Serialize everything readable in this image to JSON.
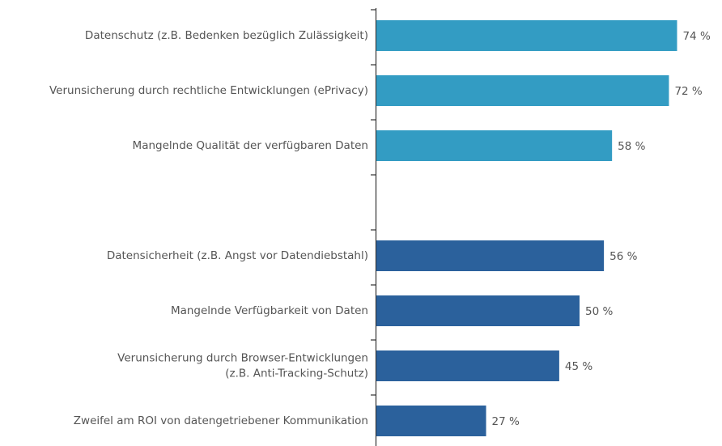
{
  "chart_data": {
    "type": "hbar",
    "categories": [
      "Datenschutz (z.B. Bedenken bezüglich Zulässigkeit)",
      "Verunsicherung durch rechtliche Entwicklungen (ePrivacy)",
      "Mangelnde Qualität der verfügbaren Daten",
      null,
      "Datensicherheit (z.B. Angst vor Datendiebstahl)",
      "Mangelnde Verfügbarkeit von Daten",
      [
        "Verunsicherung durch Browser-Entwicklungen",
        "(z.B. Anti-Tracking-Schutz)"
      ],
      "Zweifel am ROI von datengetriebener Kommunikation"
    ],
    "values": [
      74,
      72,
      58,
      null,
      56,
      50,
      45,
      27
    ],
    "value_labels": [
      "74 %",
      "72 %",
      "58 %",
      null,
      "56 %",
      "50 %",
      "45 %",
      "27 %"
    ],
    "colors": [
      "#339cc3",
      "#339cc3",
      "#339cc3",
      null,
      "#2b619c",
      "#2b619c",
      "#2b619c",
      "#2b619c"
    ]
  }
}
